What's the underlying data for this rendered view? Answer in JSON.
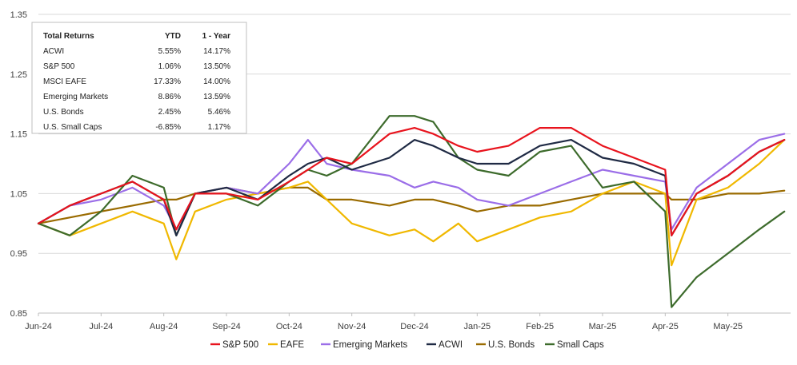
{
  "chart_data": {
    "type": "line",
    "title": "",
    "xlabel": "",
    "ylabel": "",
    "ylim": [
      0.85,
      1.35
    ],
    "yticks": [
      "0.85",
      "0.95",
      "1.05",
      "1.15",
      "1.25",
      "1.35"
    ],
    "yticks_values": [
      0.85,
      0.95,
      1.05,
      1.15,
      1.25,
      1.35
    ],
    "grid": "horizontal",
    "legend_position": "bottom",
    "x_month_labels": [
      "Jun-24",
      "Jul-24",
      "Aug-24",
      "Sep-24",
      "Oct-24",
      "Nov-24",
      "Dec-24",
      "Jan-25",
      "Feb-25",
      "Mar-25",
      "Apr-25",
      "May-25"
    ],
    "x": [
      "Jun-24",
      "Jun-24",
      "Jul-24",
      "Jul-24",
      "Aug-24",
      "Aug-24",
      "Aug-24",
      "Sep-24",
      "Sep-24",
      "Oct-24",
      "Oct-24",
      "Oct-24",
      "Nov-24",
      "Nov-24",
      "Dec-24",
      "Dec-24",
      "Dec-24",
      "Jan-25",
      "Jan-25",
      "Feb-25",
      "Feb-25",
      "Mar-25",
      "Mar-25",
      "Apr-25",
      "Apr-25",
      "Apr-25",
      "May-25",
      "May-25",
      "May-25"
    ],
    "x_fraction": [
      0.0,
      0.5,
      0.0,
      0.5,
      0.0,
      0.2,
      0.5,
      0.0,
      0.5,
      0.0,
      0.3,
      0.6,
      0.0,
      0.6,
      0.0,
      0.3,
      0.7,
      0.0,
      0.5,
      0.0,
      0.5,
      0.0,
      0.5,
      0.0,
      0.1,
      0.5,
      0.0,
      0.5,
      0.9
    ],
    "series": [
      {
        "name": "S&P 500",
        "color": "#e8131d",
        "values": [
          1.0,
          1.03,
          1.05,
          1.07,
          1.04,
          0.99,
          1.05,
          1.05,
          1.04,
          1.07,
          1.09,
          1.11,
          1.1,
          1.15,
          1.16,
          1.15,
          1.13,
          1.12,
          1.13,
          1.16,
          1.16,
          1.13,
          1.11,
          1.09,
          0.98,
          1.05,
          1.08,
          1.12,
          1.14
        ]
      },
      {
        "name": "EAFE",
        "color": "#f0b800",
        "values": [
          1.0,
          0.98,
          1.0,
          1.02,
          1.0,
          0.94,
          1.02,
          1.04,
          1.05,
          1.06,
          1.07,
          1.04,
          1.0,
          0.98,
          0.99,
          0.97,
          1.0,
          0.97,
          0.99,
          1.01,
          1.02,
          1.05,
          1.07,
          1.05,
          0.93,
          1.04,
          1.06,
          1.1,
          1.14
        ]
      },
      {
        "name": "Emerging Markets",
        "color": "#9b6ee8",
        "values": [
          1.0,
          1.03,
          1.04,
          1.06,
          1.03,
          0.99,
          1.05,
          1.06,
          1.05,
          1.1,
          1.14,
          1.1,
          1.09,
          1.08,
          1.06,
          1.07,
          1.06,
          1.04,
          1.03,
          1.05,
          1.07,
          1.09,
          1.08,
          1.07,
          0.99,
          1.06,
          1.1,
          1.14,
          1.15
        ]
      },
      {
        "name": "ACWI",
        "color": "#1f2a44",
        "values": [
          1.0,
          1.03,
          1.05,
          1.07,
          1.04,
          0.98,
          1.05,
          1.06,
          1.04,
          1.08,
          1.1,
          1.11,
          1.09,
          1.11,
          1.14,
          1.13,
          1.11,
          1.1,
          1.1,
          1.13,
          1.14,
          1.11,
          1.1,
          1.08,
          0.98,
          1.05,
          1.08,
          1.12,
          1.14
        ]
      },
      {
        "name": "U.S. Bonds",
        "color": "#9a6b00",
        "values": [
          1.0,
          1.01,
          1.02,
          1.03,
          1.04,
          1.04,
          1.05,
          1.06,
          1.05,
          1.06,
          1.06,
          1.04,
          1.04,
          1.03,
          1.04,
          1.04,
          1.03,
          1.02,
          1.03,
          1.03,
          1.04,
          1.05,
          1.05,
          1.05,
          1.04,
          1.04,
          1.05,
          1.05,
          1.055
        ]
      },
      {
        "name": "Small Caps",
        "color": "#3d6b2c",
        "values": [
          1.0,
          0.98,
          1.02,
          1.08,
          1.06,
          0.98,
          1.05,
          1.05,
          1.03,
          1.07,
          1.09,
          1.08,
          1.1,
          1.18,
          1.18,
          1.17,
          1.11,
          1.09,
          1.08,
          1.12,
          1.13,
          1.06,
          1.07,
          1.02,
          0.86,
          0.91,
          0.95,
          0.99,
          1.02
        ]
      }
    ],
    "table": {
      "headers": [
        "Total Returns",
        "YTD",
        "1 - Year"
      ],
      "rows": [
        [
          "ACWI",
          "5.55%",
          "14.17%"
        ],
        [
          "S&P 500",
          "1.06%",
          "13.50%"
        ],
        [
          "MSCI EAFE",
          "17.33%",
          "14.00%"
        ],
        [
          "Emerging Markets",
          "8.86%",
          "13.59%"
        ],
        [
          "U.S. Bonds",
          "2.45%",
          "5.46%"
        ],
        [
          "U.S. Small Caps",
          "-6.85%",
          "1.17%"
        ]
      ]
    }
  },
  "colors": {
    "grid": "#d9d9d9",
    "axis": "#bfbfbf",
    "table_border": "#bfbfbf"
  }
}
